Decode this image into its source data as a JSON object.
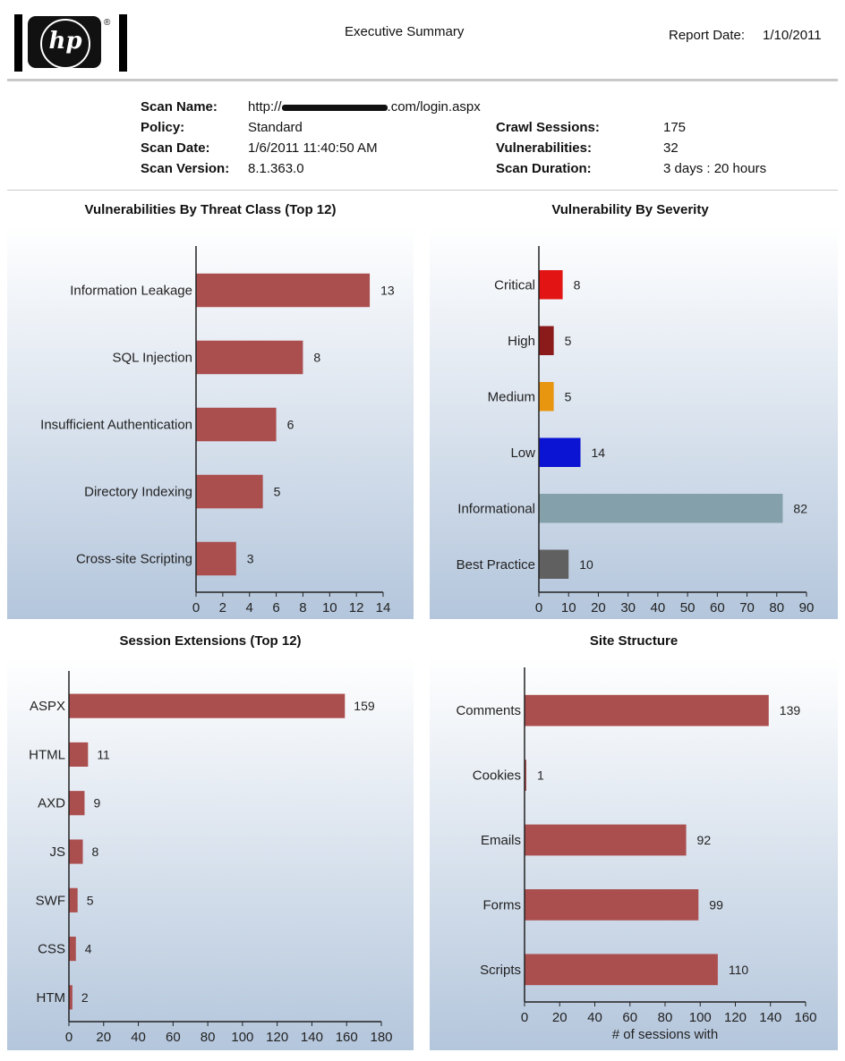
{
  "header": {
    "logo_text": "hp",
    "logo_reg": "®",
    "title": "Executive Summary",
    "report_date_label": "Report Date:",
    "report_date": "1/10/2011"
  },
  "scan_info": {
    "scan_name_label": "Scan Name:",
    "scan_name_prefix": "http://",
    "scan_name_suffix": ".com/login.aspx",
    "policy_label": "Policy:",
    "policy": "Standard",
    "scan_date_label": "Scan Date:",
    "scan_date": "1/6/2011 11:40:50 AM",
    "scan_version_label": "Scan Version:",
    "scan_version": "8.1.363.0",
    "crawl_sessions_label": "Crawl Sessions:",
    "crawl_sessions": "175",
    "vulnerabilities_label": "Vulnerabilities:",
    "vulnerabilities": "32",
    "scan_duration_label": "Scan Duration:",
    "scan_duration": "3 days : 20 hours"
  },
  "colors": {
    "bar_default": "#ab4e4e",
    "panel_top": "#ffffff",
    "panel_bottom": "#b4c6dc"
  },
  "chart_data": [
    {
      "type": "bar",
      "orientation": "horizontal",
      "title": "Vulnerabilities By Threat Class (Top 12)",
      "categories": [
        "Information Leakage",
        "SQL Injection",
        "Insufficient Authentication",
        "Directory Indexing",
        "Cross-site Scripting"
      ],
      "values": [
        13,
        8,
        6,
        5,
        3
      ],
      "xlim": [
        0,
        14
      ],
      "xticks": [
        0,
        2,
        4,
        6,
        8,
        10,
        12,
        14
      ],
      "xlabel": "",
      "grid": false
    },
    {
      "type": "bar",
      "orientation": "horizontal",
      "title": "Vulnerability By Severity",
      "categories": [
        "Critical",
        "High",
        "Medium",
        "Low",
        "Informational",
        "Best Practice"
      ],
      "values": [
        8,
        5,
        5,
        14,
        82,
        10
      ],
      "colors": [
        "#e21414",
        "#8b1a1a",
        "#e8950f",
        "#0a14d2",
        "#84a0aa",
        "#606060"
      ],
      "xlim": [
        0,
        90
      ],
      "xticks": [
        0,
        10,
        20,
        30,
        40,
        50,
        60,
        70,
        80,
        90
      ],
      "xlabel": "",
      "grid": false
    },
    {
      "type": "bar",
      "orientation": "horizontal",
      "title": "Session Extensions (Top 12)",
      "categories": [
        "ASPX",
        "HTML",
        "AXD",
        "JS",
        "SWF",
        "CSS",
        "HTM"
      ],
      "values": [
        159,
        11,
        9,
        8,
        5,
        4,
        2
      ],
      "xlim": [
        0,
        180
      ],
      "xticks": [
        0,
        20,
        40,
        60,
        80,
        100,
        120,
        140,
        160,
        180
      ],
      "xlabel": "",
      "grid": false
    },
    {
      "type": "bar",
      "orientation": "horizontal",
      "title": "Site Structure",
      "categories": [
        "Comments",
        "Cookies",
        "Emails",
        "Forms",
        "Scripts"
      ],
      "values": [
        139,
        1,
        92,
        99,
        110
      ],
      "xlim": [
        0,
        160
      ],
      "xticks": [
        0,
        20,
        40,
        60,
        80,
        100,
        120,
        140,
        160
      ],
      "xlabel": "# of sessions with",
      "grid": false
    }
  ]
}
